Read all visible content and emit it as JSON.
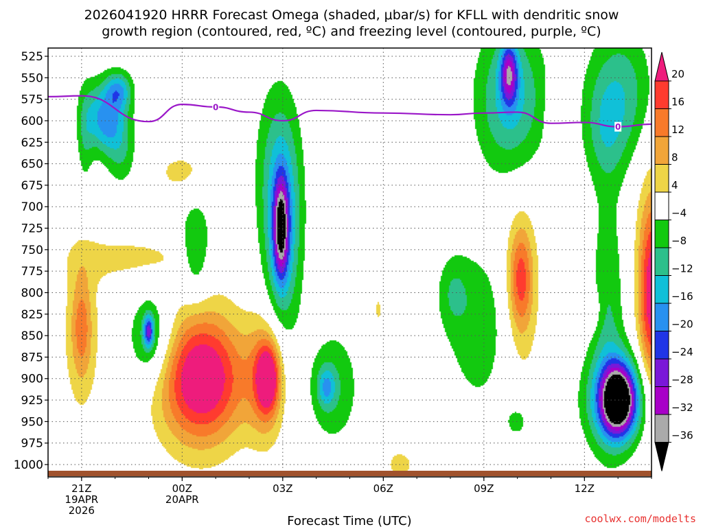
{
  "chart_data": {
    "type": "heatmap",
    "title_line1": "2026041920 HRRR Forecast Omega (shaded, μbar/s) for KFLL with dendritic snow",
    "title_line2": "growth region (contoured, red, ºC) and freezing level (contoured, purple, ºC)",
    "xlabel": "Forecast Time (UTC)",
    "credit": "coolwx.com/modelts",
    "x_range_hours": [
      -1,
      17
    ],
    "y_range_hpa": [
      525,
      1000
    ],
    "y_ticks": [
      525,
      550,
      575,
      600,
      625,
      650,
      675,
      700,
      725,
      750,
      775,
      800,
      825,
      850,
      875,
      900,
      925,
      950,
      975,
      1000
    ],
    "x_ticks": [
      {
        "hour": 0,
        "lines": [
          "21Z",
          "19APR",
          "2026"
        ]
      },
      {
        "hour": 3,
        "lines": [
          "00Z",
          "20APR"
        ]
      },
      {
        "hour": 6,
        "lines": [
          "03Z"
        ]
      },
      {
        "hour": 9,
        "lines": [
          "06Z"
        ]
      },
      {
        "hour": 12,
        "lines": [
          "09Z"
        ]
      },
      {
        "hour": 15,
        "lines": [
          "12Z"
        ]
      }
    ],
    "colorbar": {
      "labels": [
        "20",
        "16",
        "12",
        "8",
        "4",
        "−4",
        "−8",
        "−12",
        "−16",
        "−20",
        "−24",
        "−28",
        "−32",
        "−36"
      ],
      "colors": [
        "#ee1c7c",
        "#ff3b2f",
        "#f87a2a",
        "#f1a539",
        "#eed547",
        "#ffffff",
        "#12c90f",
        "#2cc08b",
        "#10c0d8",
        "#2891f0",
        "#2035e6",
        "#7a18d8",
        "#a800c8",
        "#aaaaaa",
        "#000000"
      ]
    },
    "freezing_level": {
      "label": "0",
      "color": "#9a16c8",
      "points": [
        [
          -1,
          572
        ],
        [
          0,
          571
        ],
        [
          2,
          601
        ],
        [
          3,
          581
        ],
        [
          4,
          584
        ],
        [
          5,
          590
        ],
        [
          6,
          600
        ],
        [
          7,
          588
        ],
        [
          9,
          591
        ],
        [
          11,
          593
        ],
        [
          12,
          591
        ],
        [
          13,
          590
        ],
        [
          14,
          603
        ],
        [
          15,
          602
        ],
        [
          16,
          607
        ],
        [
          17,
          604
        ]
      ]
    },
    "omega_cells": [
      {
        "t": 0.9,
        "p": 605,
        "rt": 0.55,
        "rp": 35,
        "v": -13
      },
      {
        "t": 1.1,
        "p": 565,
        "rt": 0.4,
        "rp": 22,
        "v": -15
      },
      {
        "t": 0.5,
        "p": 590,
        "rt": 0.5,
        "rp": 40,
        "v": -9
      },
      {
        "t": 1.2,
        "p": 645,
        "rt": 0.45,
        "rp": 35,
        "v": -6
      },
      {
        "t": 0.1,
        "p": 620,
        "rt": 0.25,
        "rp": 60,
        "v": -6
      },
      {
        "t": 0.0,
        "p": 840,
        "rt": 0.3,
        "rp": 60,
        "v": 10
      },
      {
        "t": 0.0,
        "p": 850,
        "rt": 0.7,
        "rp": 110,
        "v": 5
      },
      {
        "t": 2.1,
        "p": 855,
        "rt": 0.7,
        "rp": 55,
        "v": -11
      },
      {
        "t": 2.0,
        "p": 845,
        "rt": 0.15,
        "rp": 18,
        "v": -20
      },
      {
        "t": 3.4,
        "p": 750,
        "rt": 0.45,
        "rp": 55,
        "v": -10
      },
      {
        "t": 1.5,
        "p": 760,
        "rt": 2.0,
        "rp": 30,
        "v": 5
      },
      {
        "t": 3.0,
        "p": 660,
        "rt": 1.0,
        "rp": 30,
        "v": 5
      },
      {
        "t": 3.6,
        "p": 900,
        "rt": 1.2,
        "rp": 70,
        "v": 21
      },
      {
        "t": 3.5,
        "p": 900,
        "rt": 1.45,
        "rp": 95,
        "v": 6
      },
      {
        "t": 6.0,
        "p": 730,
        "rt": 0.55,
        "rp": 120,
        "v": -15
      },
      {
        "t": 5.95,
        "p": 725,
        "rt": 0.22,
        "rp": 55,
        "v": -26
      },
      {
        "t": 5.8,
        "p": 650,
        "rt": 0.7,
        "rp": 100,
        "v": -6
      },
      {
        "t": 5.5,
        "p": 900,
        "rt": 0.55,
        "rp": 70,
        "v": 14
      },
      {
        "t": 5.55,
        "p": 900,
        "rt": 0.3,
        "rp": 35,
        "v": 19
      },
      {
        "t": 7.5,
        "p": 910,
        "rt": 0.75,
        "rp": 65,
        "v": -8
      },
      {
        "t": 7.3,
        "p": 910,
        "rt": 0.25,
        "rp": 22,
        "v": -11
      },
      {
        "t": 8.85,
        "p": 820,
        "rt": 0.12,
        "rp": 20,
        "v": 5
      },
      {
        "t": 12.8,
        "p": 575,
        "rt": 1.0,
        "rp": 85,
        "v": -14
      },
      {
        "t": 12.75,
        "p": 545,
        "rt": 0.25,
        "rp": 35,
        "v": -22
      },
      {
        "t": 13.1,
        "p": 820,
        "rt": 0.75,
        "rp": 140,
        "v": 6
      },
      {
        "t": 13.1,
        "p": 785,
        "rt": 0.35,
        "rp": 60,
        "v": 15
      },
      {
        "t": 12.0,
        "p": 840,
        "rt": 1.2,
        "rp": 100,
        "v": -7
      },
      {
        "t": 11.1,
        "p": 800,
        "rt": 0.45,
        "rp": 40,
        "v": -6
      },
      {
        "t": 14.0,
        "p": 600,
        "rt": 0.15,
        "rp": 40,
        "v": 5
      },
      {
        "t": 16.1,
        "p": 570,
        "rt": 1.0,
        "rp": 80,
        "v": -11
      },
      {
        "t": 15.6,
        "p": 615,
        "rt": 0.6,
        "rp": 60,
        "v": -6
      },
      {
        "t": 16.0,
        "p": 925,
        "rt": 0.9,
        "rp": 55,
        "v": -21
      },
      {
        "t": 16.0,
        "p": 925,
        "rt": 0.45,
        "rp": 35,
        "v": -34
      },
      {
        "t": 15.7,
        "p": 820,
        "rt": 0.5,
        "rp": 140,
        "v": -8
      },
      {
        "t": 15.2,
        "p": 820,
        "rt": 0.3,
        "rp": 25,
        "v": 5
      },
      {
        "t": 13.0,
        "p": 950,
        "rt": 0.4,
        "rp": 22,
        "v": -7
      },
      {
        "t": 17.0,
        "p": 800,
        "rt": 0.35,
        "rp": 100,
        "v": 18
      },
      {
        "t": 17.0,
        "p": 800,
        "rt": 0.6,
        "rp": 200,
        "v": 6
      },
      {
        "t": 9.5,
        "p": 1000,
        "rt": 0.6,
        "rp": 25,
        "v": 5
      }
    ]
  }
}
